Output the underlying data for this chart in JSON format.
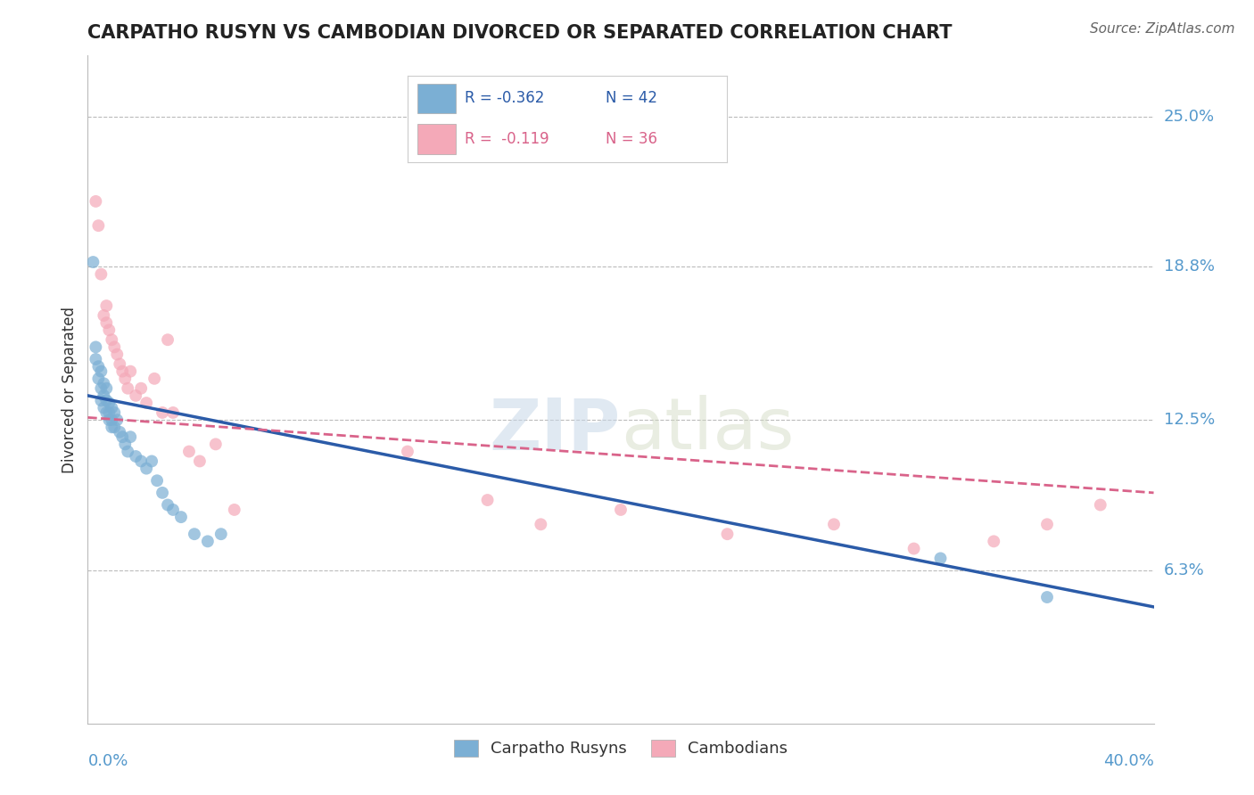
{
  "title": "CARPATHO RUSYN VS CAMBODIAN DIVORCED OR SEPARATED CORRELATION CHART",
  "source": "Source: ZipAtlas.com",
  "ylabel": "Divorced or Separated",
  "ytick_labels": [
    "25.0%",
    "18.8%",
    "12.5%",
    "6.3%"
  ],
  "ytick_values": [
    0.25,
    0.188,
    0.125,
    0.063
  ],
  "xlim": [
    0.0,
    0.4
  ],
  "ylim": [
    0.0,
    0.275
  ],
  "blue_color": "#7BAFD4",
  "pink_color": "#F4A9B8",
  "line_blue_color": "#2B5BA8",
  "line_pink_color": "#D9638A",
  "blue_scatter_x": [
    0.002,
    0.003,
    0.003,
    0.004,
    0.004,
    0.005,
    0.005,
    0.005,
    0.006,
    0.006,
    0.006,
    0.007,
    0.007,
    0.007,
    0.008,
    0.008,
    0.008,
    0.009,
    0.009,
    0.009,
    0.01,
    0.01,
    0.011,
    0.012,
    0.013,
    0.014,
    0.015,
    0.016,
    0.018,
    0.02,
    0.022,
    0.024,
    0.026,
    0.028,
    0.03,
    0.032,
    0.035,
    0.04,
    0.045,
    0.05,
    0.32,
    0.36
  ],
  "blue_scatter_y": [
    0.19,
    0.155,
    0.15,
    0.147,
    0.142,
    0.145,
    0.138,
    0.133,
    0.14,
    0.135,
    0.13,
    0.138,
    0.133,
    0.128,
    0.132,
    0.128,
    0.125,
    0.13,
    0.125,
    0.122,
    0.128,
    0.122,
    0.125,
    0.12,
    0.118,
    0.115,
    0.112,
    0.118,
    0.11,
    0.108,
    0.105,
    0.108,
    0.1,
    0.095,
    0.09,
    0.088,
    0.085,
    0.078,
    0.075,
    0.078,
    0.068,
    0.052
  ],
  "pink_scatter_x": [
    0.003,
    0.004,
    0.005,
    0.006,
    0.007,
    0.007,
    0.008,
    0.009,
    0.01,
    0.011,
    0.012,
    0.013,
    0.014,
    0.015,
    0.016,
    0.018,
    0.02,
    0.022,
    0.025,
    0.028,
    0.03,
    0.032,
    0.038,
    0.042,
    0.048,
    0.055,
    0.12,
    0.15,
    0.17,
    0.2,
    0.24,
    0.28,
    0.31,
    0.34,
    0.36,
    0.38
  ],
  "pink_scatter_y": [
    0.215,
    0.205,
    0.185,
    0.168,
    0.172,
    0.165,
    0.162,
    0.158,
    0.155,
    0.152,
    0.148,
    0.145,
    0.142,
    0.138,
    0.145,
    0.135,
    0.138,
    0.132,
    0.142,
    0.128,
    0.158,
    0.128,
    0.112,
    0.108,
    0.115,
    0.088,
    0.112,
    0.092,
    0.082,
    0.088,
    0.078,
    0.082,
    0.072,
    0.075,
    0.082,
    0.09
  ],
  "blue_line_x0": 0.0,
  "blue_line_y0": 0.135,
  "blue_line_x1": 0.4,
  "blue_line_y1": 0.048,
  "pink_line_x0": 0.0,
  "pink_line_y0": 0.126,
  "pink_line_x1": 0.4,
  "pink_line_y1": 0.095
}
